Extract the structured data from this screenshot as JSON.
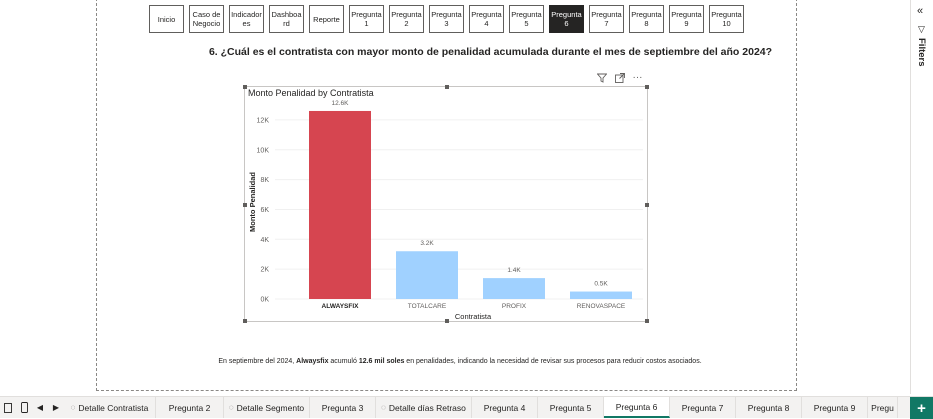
{
  "nav": {
    "buttons": [
      {
        "label": "Inicio",
        "active": false
      },
      {
        "label": "Caso de Negocio",
        "active": false
      },
      {
        "label": "Indicadores",
        "active": false
      },
      {
        "label": "Dashboard",
        "active": false
      },
      {
        "label": "Reporte",
        "active": false
      },
      {
        "label": "Pregunta 1",
        "active": false
      },
      {
        "label": "Pregunta 2",
        "active": false
      },
      {
        "label": "Pregunta 3",
        "active": false
      },
      {
        "label": "Pregunta 4",
        "active": false
      },
      {
        "label": "Pregunta 5",
        "active": false
      },
      {
        "label": "Pregunta 6",
        "active": true
      },
      {
        "label": "Pregunta 7",
        "active": false
      },
      {
        "label": "Pregunta 8",
        "active": false
      },
      {
        "label": "Pregunta 9",
        "active": false
      },
      {
        "label": "Pregunta 10",
        "active": false
      }
    ]
  },
  "question": "6. ¿Cuál es el contratista con mayor monto de penalidad acumulada durante el mes de septiembre del año 2024?",
  "visual_header": {
    "icons": [
      "filter-icon",
      "focus-mode-icon",
      "more-options-icon"
    ],
    "more_glyph": "···"
  },
  "chart_data": {
    "type": "bar",
    "title": "Monto Penalidad by Contratista",
    "xlabel": "Contratista",
    "ylabel": "Monto Penalidad",
    "categories": [
      "ALWAYSFIX",
      "TOTALCARE",
      "PROFIX",
      "RENOVASPACE"
    ],
    "values": [
      12.6,
      3.2,
      1.4,
      0.5
    ],
    "data_labels": [
      "12.6K",
      "3.2K",
      "1.4K",
      "0.5K"
    ],
    "y_ticks": [
      0,
      2,
      4,
      6,
      8,
      10,
      12
    ],
    "y_tick_labels": [
      "0K",
      "2K",
      "4K",
      "6K",
      "8K",
      "10K",
      "12K"
    ],
    "ylim": [
      0,
      13
    ],
    "highlight_color": "#d64550",
    "bar_color": "#a0d1ff",
    "highlight_index": 0,
    "grid": true
  },
  "caption": {
    "before": "En septiembre del 2024, ",
    "bold1": "Alwaysfix",
    "mid": " acumuló ",
    "bold2": "12.6 mil soles",
    "after": " en penalidades, indicando la necesidad de revisar sus procesos para reducir costos asociados."
  },
  "filters_pane": {
    "label": "Filters",
    "collapse_glyph": "«",
    "funnel_glyph": "▽"
  },
  "tabbar": {
    "tabs": [
      {
        "label": "Detalle Contratista",
        "hidden": true,
        "active": false
      },
      {
        "label": "Pregunta 2",
        "hidden": false,
        "active": false
      },
      {
        "label": "Detalle Segmento",
        "hidden": true,
        "active": false
      },
      {
        "label": "Pregunta 3",
        "hidden": false,
        "active": false
      },
      {
        "label": "Detalle días Retraso",
        "hidden": true,
        "active": false
      },
      {
        "label": "Pregunta 4",
        "hidden": false,
        "active": false
      },
      {
        "label": "Pregunta 5",
        "hidden": false,
        "active": false
      },
      {
        "label": "Pregunta 6",
        "hidden": false,
        "active": true
      },
      {
        "label": "Pregunta 7",
        "hidden": false,
        "active": false
      },
      {
        "label": "Pregunta 8",
        "hidden": false,
        "active": false
      },
      {
        "label": "Pregunta 9",
        "hidden": false,
        "active": false
      },
      {
        "label": "Pregu",
        "hidden": false,
        "active": false
      }
    ],
    "add_glyph": "+"
  },
  "colors": {
    "accent": "#117865",
    "active_nav": "#252423"
  }
}
